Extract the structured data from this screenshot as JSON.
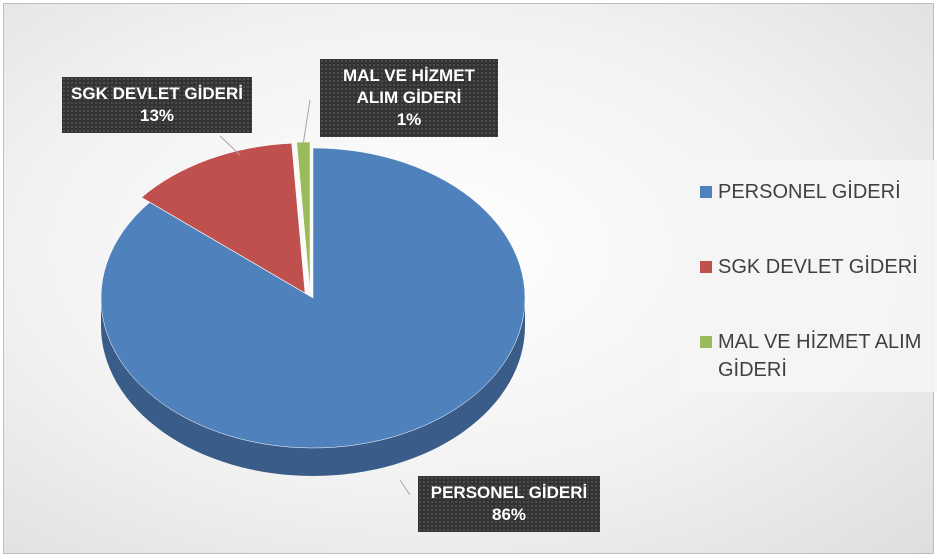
{
  "chart_data": {
    "type": "pie",
    "categories": [
      "PERSONEL GİDERİ",
      "SGK DEVLET GİDERİ",
      "MAL VE HİZMET ALIM GİDERİ"
    ],
    "values": [
      86,
      13,
      1
    ],
    "value_labels": [
      "86%",
      "13%",
      "1%"
    ],
    "colors": [
      "#4f81bd",
      "#c0504d",
      "#9bbb59"
    ],
    "legend": "right"
  }
}
